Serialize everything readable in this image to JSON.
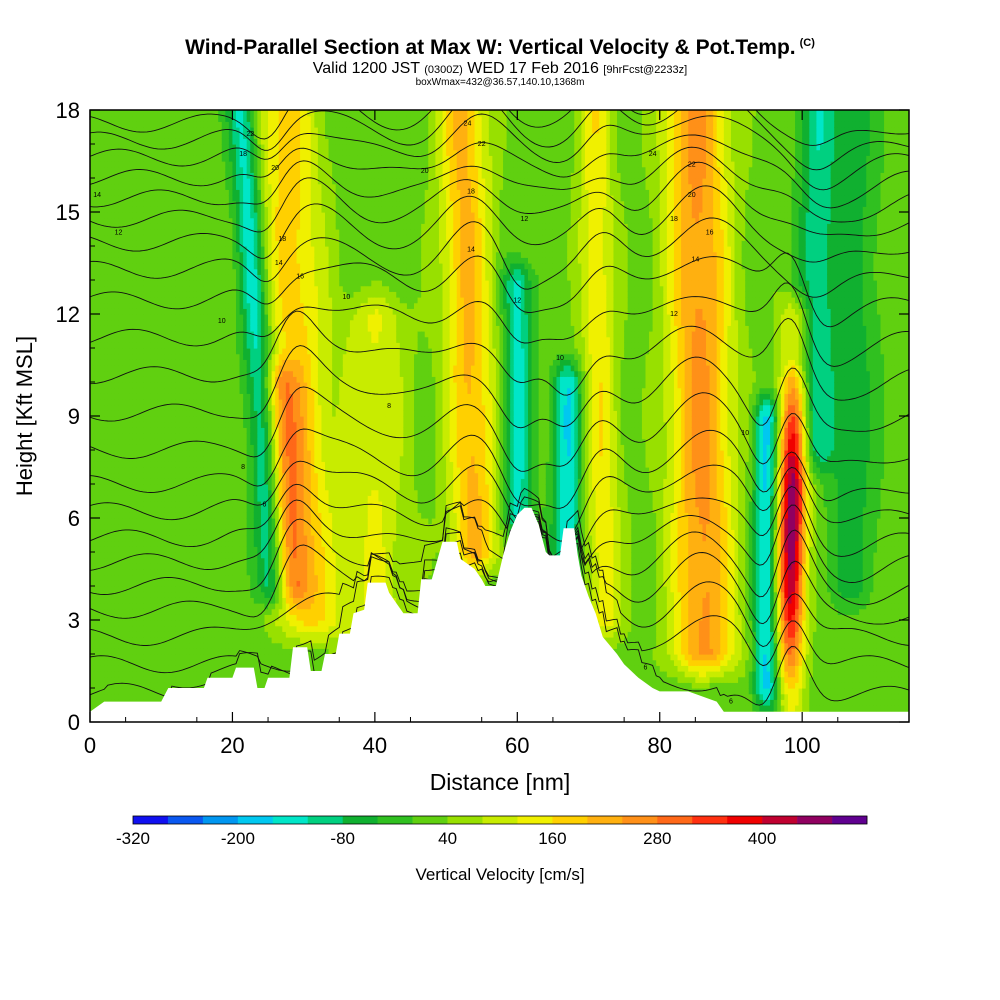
{
  "title": {
    "main": "Wind-Parallel Section at Max W: Vertical Velocity & Pot.Temp.",
    "mark": "(C)",
    "valid_prefix": "Valid 1200 JST",
    "zulu": "(0300Z)",
    "valid_date": "WED 17 Feb 2016",
    "forecast": "[9hrFcst@2233z]",
    "box_info": "boxWmax=432@36.57,140.10,1368m"
  },
  "chart_data": {
    "type": "heatmap",
    "xlabel": "Distance [nm]",
    "ylabel": "Height [Kft MSL]",
    "xlim": [
      0,
      115
    ],
    "ylim": [
      0,
      18
    ],
    "x_ticks": [
      0,
      20,
      40,
      60,
      80,
      100
    ],
    "y_ticks": [
      0,
      3,
      6,
      9,
      12,
      15,
      18
    ],
    "grid": false,
    "colorbar": {
      "label": "Vertical Velocity [cm/s]",
      "tick_labels": [
        "-320",
        "-200",
        "-80",
        "40",
        "160",
        "280",
        "400"
      ],
      "tick_values": [
        -320,
        -200,
        -80,
        40,
        160,
        280,
        400
      ],
      "bin_edges": [
        -320,
        -280,
        -240,
        -200,
        -160,
        -120,
        -80,
        -40,
        0,
        40,
        80,
        120,
        160,
        200,
        240,
        280,
        320,
        360,
        400,
        440,
        480
      ],
      "colors": [
        "#1010f0",
        "#0a58f0",
        "#0096f0",
        "#00c8f0",
        "#00e6c8",
        "#00d080",
        "#10b030",
        "#30c020",
        "#60d010",
        "#98e000",
        "#c8ec00",
        "#f0f000",
        "#ffd000",
        "#ffb010",
        "#ff9018",
        "#ff6818",
        "#ff3010",
        "#f00000",
        "#c00030",
        "#900060",
        "#600090"
      ]
    },
    "terrain_kft": [
      [
        0,
        0.3
      ],
      [
        2,
        0.6
      ],
      [
        10,
        0.6
      ],
      [
        11,
        1.0
      ],
      [
        16,
        1.0
      ],
      [
        16.5,
        1.3
      ],
      [
        20,
        1.3
      ],
      [
        20.5,
        1.6
      ],
      [
        23,
        1.6
      ],
      [
        23.5,
        1.0
      ],
      [
        24.5,
        1.0
      ],
      [
        25,
        1.3
      ],
      [
        28,
        1.3
      ],
      [
        28.5,
        2.2
      ],
      [
        30.5,
        2.2
      ],
      [
        31,
        1.5
      ],
      [
        32.5,
        1.5
      ],
      [
        33,
        2.0
      ],
      [
        34.5,
        2.0
      ],
      [
        35,
        2.6
      ],
      [
        36.5,
        2.6
      ],
      [
        37,
        3.2
      ],
      [
        38.5,
        3.3
      ],
      [
        39,
        4.1
      ],
      [
        41.5,
        4.1
      ],
      [
        42,
        3.8
      ],
      [
        43,
        3.5
      ],
      [
        44,
        3.2
      ],
      [
        46,
        3.2
      ],
      [
        46.5,
        4.2
      ],
      [
        48,
        4.2
      ],
      [
        49.5,
        5.3
      ],
      [
        51.5,
        5.3
      ],
      [
        52,
        4.8
      ],
      [
        54,
        4.5
      ],
      [
        55,
        4.2
      ],
      [
        55.5,
        4.0
      ],
      [
        57,
        4.0
      ],
      [
        58,
        4.9
      ],
      [
        59,
        5.6
      ],
      [
        60,
        6.1
      ],
      [
        61,
        6.3
      ],
      [
        62,
        6.3
      ],
      [
        63,
        5.8
      ],
      [
        64,
        5.0
      ],
      [
        64.5,
        4.9
      ],
      [
        66,
        4.9
      ],
      [
        66.5,
        5.7
      ],
      [
        68,
        5.7
      ],
      [
        68.5,
        4.9
      ],
      [
        69,
        4.3
      ],
      [
        70,
        3.7
      ],
      [
        71,
        3.2
      ],
      [
        72,
        2.5
      ],
      [
        74,
        2.0
      ],
      [
        75,
        1.7
      ],
      [
        77,
        1.3
      ],
      [
        79,
        1.0
      ],
      [
        80,
        0.9
      ],
      [
        84,
        0.9
      ],
      [
        88,
        0.6
      ],
      [
        89,
        0.3
      ],
      [
        115,
        0.3
      ]
    ],
    "updraft_columns": [
      {
        "x": 30,
        "width": 4.5,
        "slope": -0.22,
        "bottom": 3,
        "top": 18,
        "peak": 160,
        "kind": "up"
      },
      {
        "x": 28,
        "width": 2.5,
        "slope": -0.3,
        "bottom": 4,
        "top": 10,
        "peak": 140,
        "kind": "up"
      },
      {
        "x": 25,
        "width": 2.0,
        "slope": -0.3,
        "bottom": 4,
        "top": 18,
        "peak": -180,
        "kind": "down"
      },
      {
        "x": 40,
        "width": 4.5,
        "slope": 0.0,
        "bottom": 2,
        "top": 12,
        "peak": 100,
        "kind": "up"
      },
      {
        "x": 54,
        "width": 3.5,
        "slope": -0.15,
        "bottom": 5,
        "top": 18,
        "peak": 190,
        "kind": "up"
      },
      {
        "x": 60,
        "width": 2.0,
        "slope": 0.0,
        "bottom": 6,
        "top": 13,
        "peak": -160,
        "kind": "down"
      },
      {
        "x": 67,
        "width": 2.0,
        "slope": 0.0,
        "bottom": 4,
        "top": 10,
        "peak": -180,
        "kind": "down"
      },
      {
        "x": 72,
        "width": 2.5,
        "slope": -0.1,
        "bottom": 3,
        "top": 18,
        "peak": 130,
        "kind": "up"
      },
      {
        "x": 86,
        "width": 4.5,
        "slope": -0.08,
        "bottom": 2,
        "top": 18,
        "peak": 230,
        "kind": "up"
      },
      {
        "x": 98.5,
        "width": 2.0,
        "slope": 0.05,
        "bottom": 0.5,
        "top": 12,
        "peak": 460,
        "kind": "up"
      },
      {
        "x": 95,
        "width": 1.8,
        "slope": 0.0,
        "bottom": 1,
        "top": 9,
        "peak": -200,
        "kind": "down"
      },
      {
        "x": 102,
        "width": 2.5,
        "slope": 0.0,
        "bottom": 8,
        "top": 18,
        "peak": -120,
        "kind": "down"
      },
      {
        "x": 107,
        "width": 3.5,
        "slope": 0.0,
        "bottom": 4,
        "top": 18,
        "peak": -80,
        "kind": "down"
      }
    ],
    "theta_contours": {
      "note_levels": "labelled contour values as printed",
      "lines_kft_at_x0": [
        0.8,
        1.7,
        2.5,
        3.3,
        4.0,
        4.7,
        5.4,
        6.2,
        7.0,
        8.0,
        9.1,
        10.2,
        11.3,
        12.4,
        13.3,
        14.1,
        14.8,
        15.4,
        16.0,
        16.6,
        17.1,
        17.6
      ],
      "labels": [
        {
          "x": 1,
          "y": 15.5,
          "text": "14"
        },
        {
          "x": 4,
          "y": 14.4,
          "text": "12"
        },
        {
          "x": 18.5,
          "y": 11.8,
          "text": "10"
        },
        {
          "x": 21.5,
          "y": 16.7,
          "text": "18"
        },
        {
          "x": 22.5,
          "y": 17.3,
          "text": "22"
        },
        {
          "x": 26,
          "y": 16.3,
          "text": "20"
        },
        {
          "x": 27,
          "y": 14.2,
          "text": "18"
        },
        {
          "x": 26.5,
          "y": 13.5,
          "text": "14"
        },
        {
          "x": 29.5,
          "y": 13.1,
          "text": "16"
        },
        {
          "x": 36,
          "y": 12.5,
          "text": "10"
        },
        {
          "x": 21.5,
          "y": 7.5,
          "text": "8"
        },
        {
          "x": 24.5,
          "y": 6.4,
          "text": "6"
        },
        {
          "x": 42,
          "y": 9.3,
          "text": "8"
        },
        {
          "x": 47,
          "y": 16.2,
          "text": "20"
        },
        {
          "x": 53,
          "y": 17.6,
          "text": "24"
        },
        {
          "x": 55,
          "y": 17.0,
          "text": "22"
        },
        {
          "x": 53.5,
          "y": 15.6,
          "text": "18"
        },
        {
          "x": 53.5,
          "y": 13.9,
          "text": "14"
        },
        {
          "x": 61,
          "y": 14.8,
          "text": "12"
        },
        {
          "x": 60,
          "y": 12.4,
          "text": "12"
        },
        {
          "x": 66,
          "y": 10.7,
          "text": "10"
        },
        {
          "x": 79,
          "y": 16.7,
          "text": "24"
        },
        {
          "x": 84.5,
          "y": 16.4,
          "text": "22"
        },
        {
          "x": 84.5,
          "y": 15.5,
          "text": "20"
        },
        {
          "x": 82,
          "y": 14.8,
          "text": "18"
        },
        {
          "x": 87,
          "y": 14.4,
          "text": "16"
        },
        {
          "x": 85,
          "y": 13.6,
          "text": "14"
        },
        {
          "x": 82,
          "y": 12.0,
          "text": "12"
        },
        {
          "x": 92,
          "y": 8.5,
          "text": "10"
        },
        {
          "x": 78,
          "y": 1.6,
          "text": "6"
        },
        {
          "x": 90,
          "y": 0.6,
          "text": "6"
        }
      ]
    }
  }
}
